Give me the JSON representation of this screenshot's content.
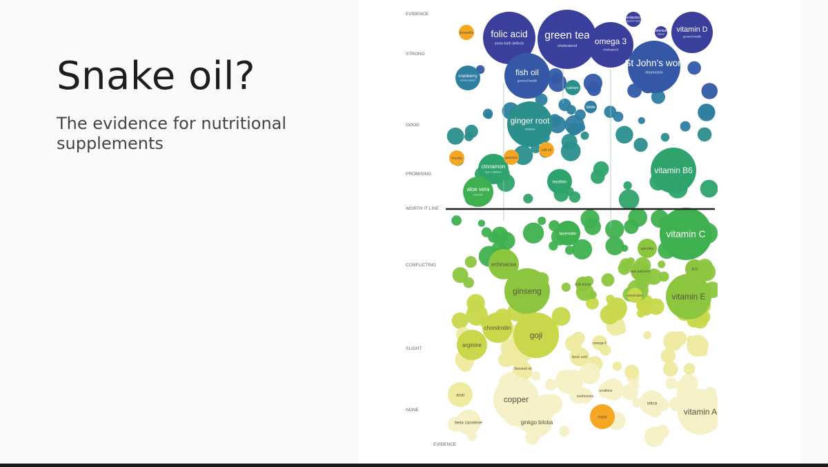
{
  "slide": {
    "title": "Snake oil?",
    "subtitle": "The evidence for nutritional supplements"
  },
  "chart_data": {
    "type": "bubble",
    "ylabel": "EVIDENCE",
    "xlabel": "EVIDENCE",
    "y_levels": [
      "STRONG",
      "GOOD",
      "PROMISING",
      "WORTH IT LINE",
      "CONFLICTING",
      "SLIGHT",
      "NONE"
    ],
    "worth_it_line_label": "WORTH IT LINE",
    "colors": {
      "strong": "#3b3f9c",
      "strong_blue": "#3458a6",
      "good": "#2e7ea0",
      "teal": "#2b8f8c",
      "green": "#2ea36b",
      "bright_green": "#3fb04f",
      "lime": "#8cc63f",
      "yellow_green": "#c8d84a",
      "pale_yellow": "#eeeaa0",
      "cream": "#f5f0c5",
      "orange": "#f5a623",
      "line": "#222222"
    },
    "bubbles": [
      {
        "label": "folic acid",
        "sub": "some birth defects",
        "level": "strong",
        "size": 9,
        "tier": "strong"
      },
      {
        "label": "green tea",
        "sub": "cholesterol",
        "level": "strong",
        "size": 10,
        "tier": "strong"
      },
      {
        "label": "omega 3",
        "sub": "cholesterol",
        "level": "strong",
        "size": 8,
        "tier": "strong"
      },
      {
        "label": "probiotics",
        "sub": "digestive health",
        "level": "strong",
        "size": 3,
        "tier": "strong"
      },
      {
        "label": "selenium",
        "sub": "cancer",
        "level": "strong",
        "size": 2,
        "tier": "strong"
      },
      {
        "label": "vitamin D",
        "sub": "general health",
        "level": "strong",
        "size": 7,
        "tier": "strong"
      },
      {
        "label": "St John's wort",
        "sub": "depression",
        "level": "strong",
        "size": 9,
        "tier": "strong_blue"
      },
      {
        "label": "fish oil",
        "sub": "general health",
        "level": "strong",
        "size": 8,
        "tier": "strong_blue"
      },
      {
        "label": "cranberry",
        "sub": "urinary system",
        "level": "strong",
        "size": 5,
        "tier": "good"
      },
      {
        "label": "ginger root",
        "sub": "nausea",
        "level": "good",
        "size": 8,
        "tier": "teal"
      },
      {
        "label": "cinnamon",
        "sub": "type 2 diabetes",
        "level": "promising",
        "size": 6,
        "tier": "green"
      },
      {
        "label": "aloe vera",
        "sub": "psoriasis",
        "level": "promising",
        "size": 6,
        "tier": "bright_green"
      },
      {
        "label": "lecithin",
        "sub": "",
        "level": "promising",
        "size": 5,
        "tier": "green"
      },
      {
        "label": "vitamin B6",
        "sub": "",
        "level": "promising",
        "size": 8,
        "tier": "green"
      },
      {
        "label": "SAMe",
        "sub": "",
        "level": "good",
        "size": 2,
        "tier": "good"
      },
      {
        "label": "calcium",
        "sub": "",
        "level": "good",
        "size": 3,
        "tier": "teal"
      },
      {
        "label": "lavender",
        "sub": "",
        "level": "conflicting",
        "size": 5,
        "tier": "bright_green"
      },
      {
        "label": "vitamin C",
        "sub": "",
        "level": "conflicting",
        "size": 9,
        "tier": "bright_green"
      },
      {
        "label": "echinacea",
        "sub": "",
        "level": "conflicting",
        "size": 6,
        "tier": "lime"
      },
      {
        "label": "spirulina",
        "sub": "",
        "level": "conflicting",
        "size": 4,
        "tier": "lime"
      },
      {
        "label": "saw palmetto",
        "sub": "",
        "level": "conflicting",
        "size": 4,
        "tier": "lime"
      },
      {
        "label": "B12",
        "sub": "",
        "level": "conflicting",
        "size": 4,
        "tier": "lime"
      },
      {
        "label": "milk thistle",
        "sub": "",
        "level": "conflicting",
        "size": 3,
        "tier": "lime"
      },
      {
        "label": "ginseng",
        "sub": "",
        "level": "conflicting",
        "size": 8,
        "tier": "lime"
      },
      {
        "label": "vitamin E",
        "sub": "",
        "level": "conflicting",
        "size": 8,
        "tier": "lime"
      },
      {
        "label": "resveratrol",
        "sub": "",
        "level": "conflicting",
        "size": 3,
        "tier": "yellow_green"
      },
      {
        "label": "chondroitin",
        "sub": "",
        "level": "slight",
        "size": 6,
        "tier": "yellow_green"
      },
      {
        "label": "goji",
        "sub": "",
        "level": "slight",
        "size": 8,
        "tier": "yellow_green"
      },
      {
        "label": "arginine",
        "sub": "",
        "level": "slight",
        "size": 6,
        "tier": "yellow_green"
      },
      {
        "label": "lipoic acid",
        "sub": "",
        "level": "slight",
        "size": 4,
        "tier": "pale_yellow"
      },
      {
        "label": "omega 6",
        "sub": "",
        "level": "slight",
        "size": 3,
        "tier": "pale_yellow"
      },
      {
        "label": "acai",
        "sub": "",
        "level": "none",
        "size": 5,
        "tier": "pale_yellow"
      },
      {
        "label": "copper",
        "sub": "",
        "level": "none",
        "size": 8,
        "tier": "cream"
      },
      {
        "label": "flaxseed oil",
        "sub": "",
        "level": "slight",
        "size": 3,
        "tier": "pale_yellow"
      },
      {
        "label": "ginkgo biloba",
        "sub": "",
        "level": "none",
        "size": 6,
        "tier": "cream"
      },
      {
        "label": "beta carotene",
        "sub": "",
        "level": "none",
        "size": 5,
        "tier": "cream"
      },
      {
        "label": "silica",
        "sub": "",
        "level": "none",
        "size": 5,
        "tier": "cream"
      },
      {
        "label": "vitamin A",
        "sub": "",
        "level": "none",
        "size": 8,
        "tier": "cream"
      },
      {
        "label": "noni",
        "sub": "",
        "level": "none",
        "size": 5,
        "tier": "orange"
      },
      {
        "label": "methionine",
        "sub": "",
        "level": "none",
        "size": 3,
        "tier": "cream"
      },
      {
        "label": "ornithine",
        "sub": "",
        "level": "none",
        "size": 3,
        "tier": "cream"
      },
      {
        "label": "boswellia",
        "sub": "",
        "level": "strong",
        "size": 3,
        "tier": "orange"
      },
      {
        "label": "hoodia",
        "sub": "",
        "level": "promising",
        "size": 3,
        "tier": "orange"
      },
      {
        "label": "krill oil",
        "sub": "",
        "level": "promising",
        "size": 3,
        "tier": "orange"
      },
      {
        "label": "guarana",
        "sub": "",
        "level": "promising",
        "size": 3,
        "tier": "orange"
      }
    ]
  }
}
